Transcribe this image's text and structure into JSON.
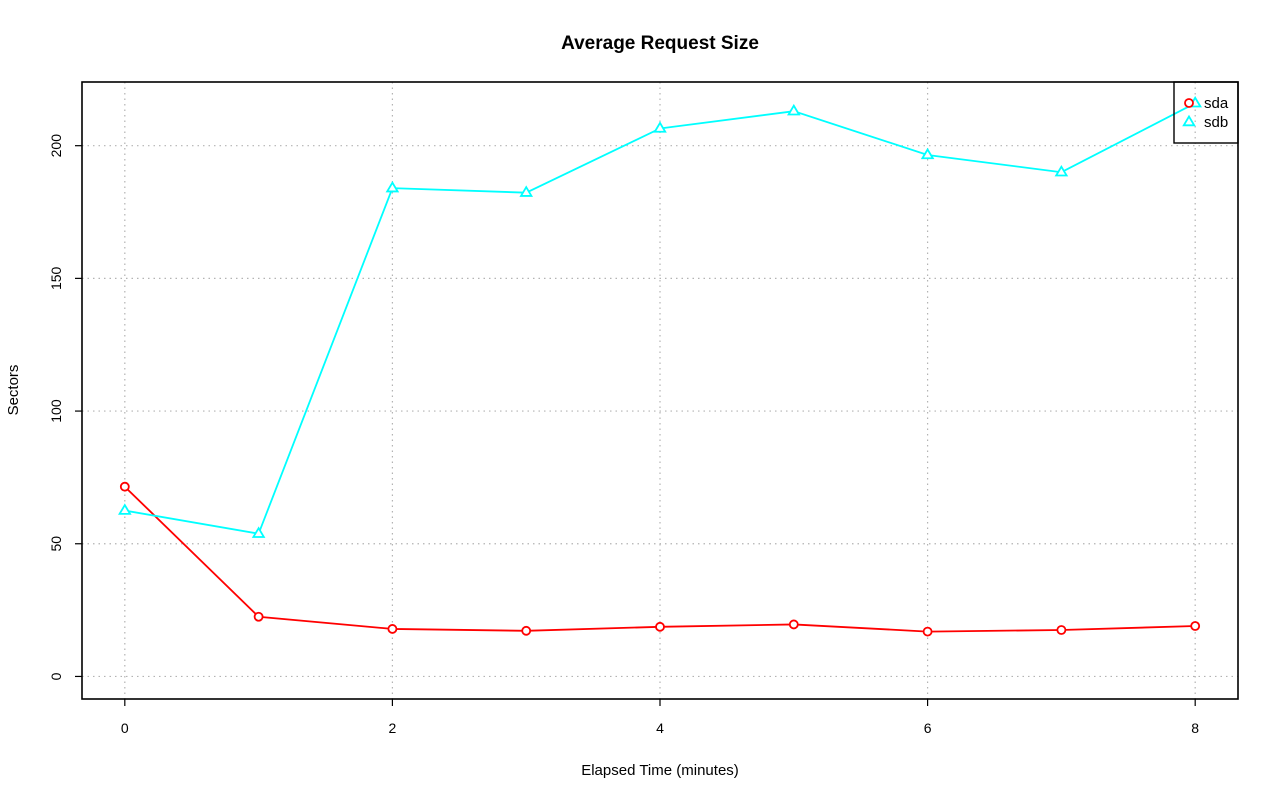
{
  "chart_data": {
    "type": "line",
    "title": "Average Request Size",
    "xlabel": "Elapsed Time (minutes)",
    "ylabel": "Sectors",
    "x": [
      0,
      1,
      2,
      3,
      4,
      5,
      6,
      7,
      8
    ],
    "xlim": [
      -0.32,
      8.32
    ],
    "ylim": [
      -8.5,
      224
    ],
    "xticks": [
      0,
      2,
      4,
      6,
      8
    ],
    "yticks": [
      0,
      50,
      100,
      150,
      200
    ],
    "grid": true,
    "legend_position": "top-right",
    "series": [
      {
        "name": "sda",
        "color": "#ff0000",
        "marker": "circle",
        "values": [
          71.5,
          22.5,
          17.9,
          17.2,
          18.7,
          19.6,
          16.9,
          17.5,
          19.0
        ]
      },
      {
        "name": "sdb",
        "color": "#00ffff",
        "marker": "triangle",
        "values": [
          62.5,
          53.8,
          184.0,
          182.3,
          206.5,
          213.0,
          196.5,
          190.0,
          216.0
        ]
      }
    ]
  }
}
